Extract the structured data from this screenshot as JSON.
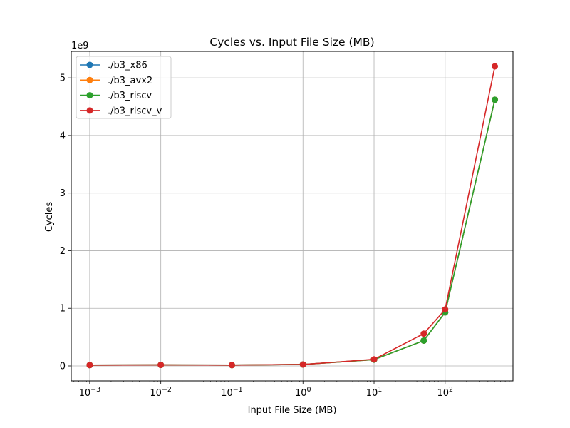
{
  "chart_data": {
    "type": "line",
    "title": "Cycles vs. Input File Size (MB)",
    "xlabel": "Input File Size (MB)",
    "ylabel": "Cycles",
    "y_offset_label": "1e9",
    "x_scale": "log",
    "xlim": [
      0.00055,
      900
    ],
    "ylim": [
      -0.26,
      5.46
    ],
    "x_ticks": [
      {
        "value": 0.001,
        "base": "10",
        "exp": "−3"
      },
      {
        "value": 0.01,
        "base": "10",
        "exp": "−2"
      },
      {
        "value": 0.1,
        "base": "10",
        "exp": "−1"
      },
      {
        "value": 1,
        "base": "10",
        "exp": "0"
      },
      {
        "value": 10,
        "base": "10",
        "exp": "1"
      },
      {
        "value": 100,
        "base": "10",
        "exp": "2"
      }
    ],
    "y_ticks": [
      {
        "value": 0,
        "label": "0"
      },
      {
        "value": 1,
        "label": "1"
      },
      {
        "value": 2,
        "label": "2"
      },
      {
        "value": 3,
        "label": "3"
      },
      {
        "value": 4,
        "label": "4"
      },
      {
        "value": 5,
        "label": "5"
      }
    ],
    "grid": true,
    "legend_position": "top-left",
    "x": [
      0.001,
      0.01,
      0.1,
      1,
      10,
      50,
      100,
      500
    ],
    "series": [
      {
        "name": "./b3_x86",
        "color": "#1f77b4",
        "values": [
          0.015,
          0.018,
          0.015,
          0.025,
          0.11,
          0.44,
          0.93,
          4.62
        ]
      },
      {
        "name": "./b3_avx2",
        "color": "#ff7f0e",
        "values": [
          0.015,
          0.018,
          0.015,
          0.025,
          0.11,
          0.44,
          0.93,
          4.62
        ]
      },
      {
        "name": "./b3_riscv",
        "color": "#2ca02c",
        "values": [
          0.015,
          0.018,
          0.015,
          0.025,
          0.11,
          0.44,
          0.93,
          4.62
        ]
      },
      {
        "name": "./b3_riscv_v",
        "color": "#d62728",
        "values": [
          0.015,
          0.018,
          0.015,
          0.025,
          0.115,
          0.56,
          0.98,
          5.2
        ]
      }
    ]
  }
}
